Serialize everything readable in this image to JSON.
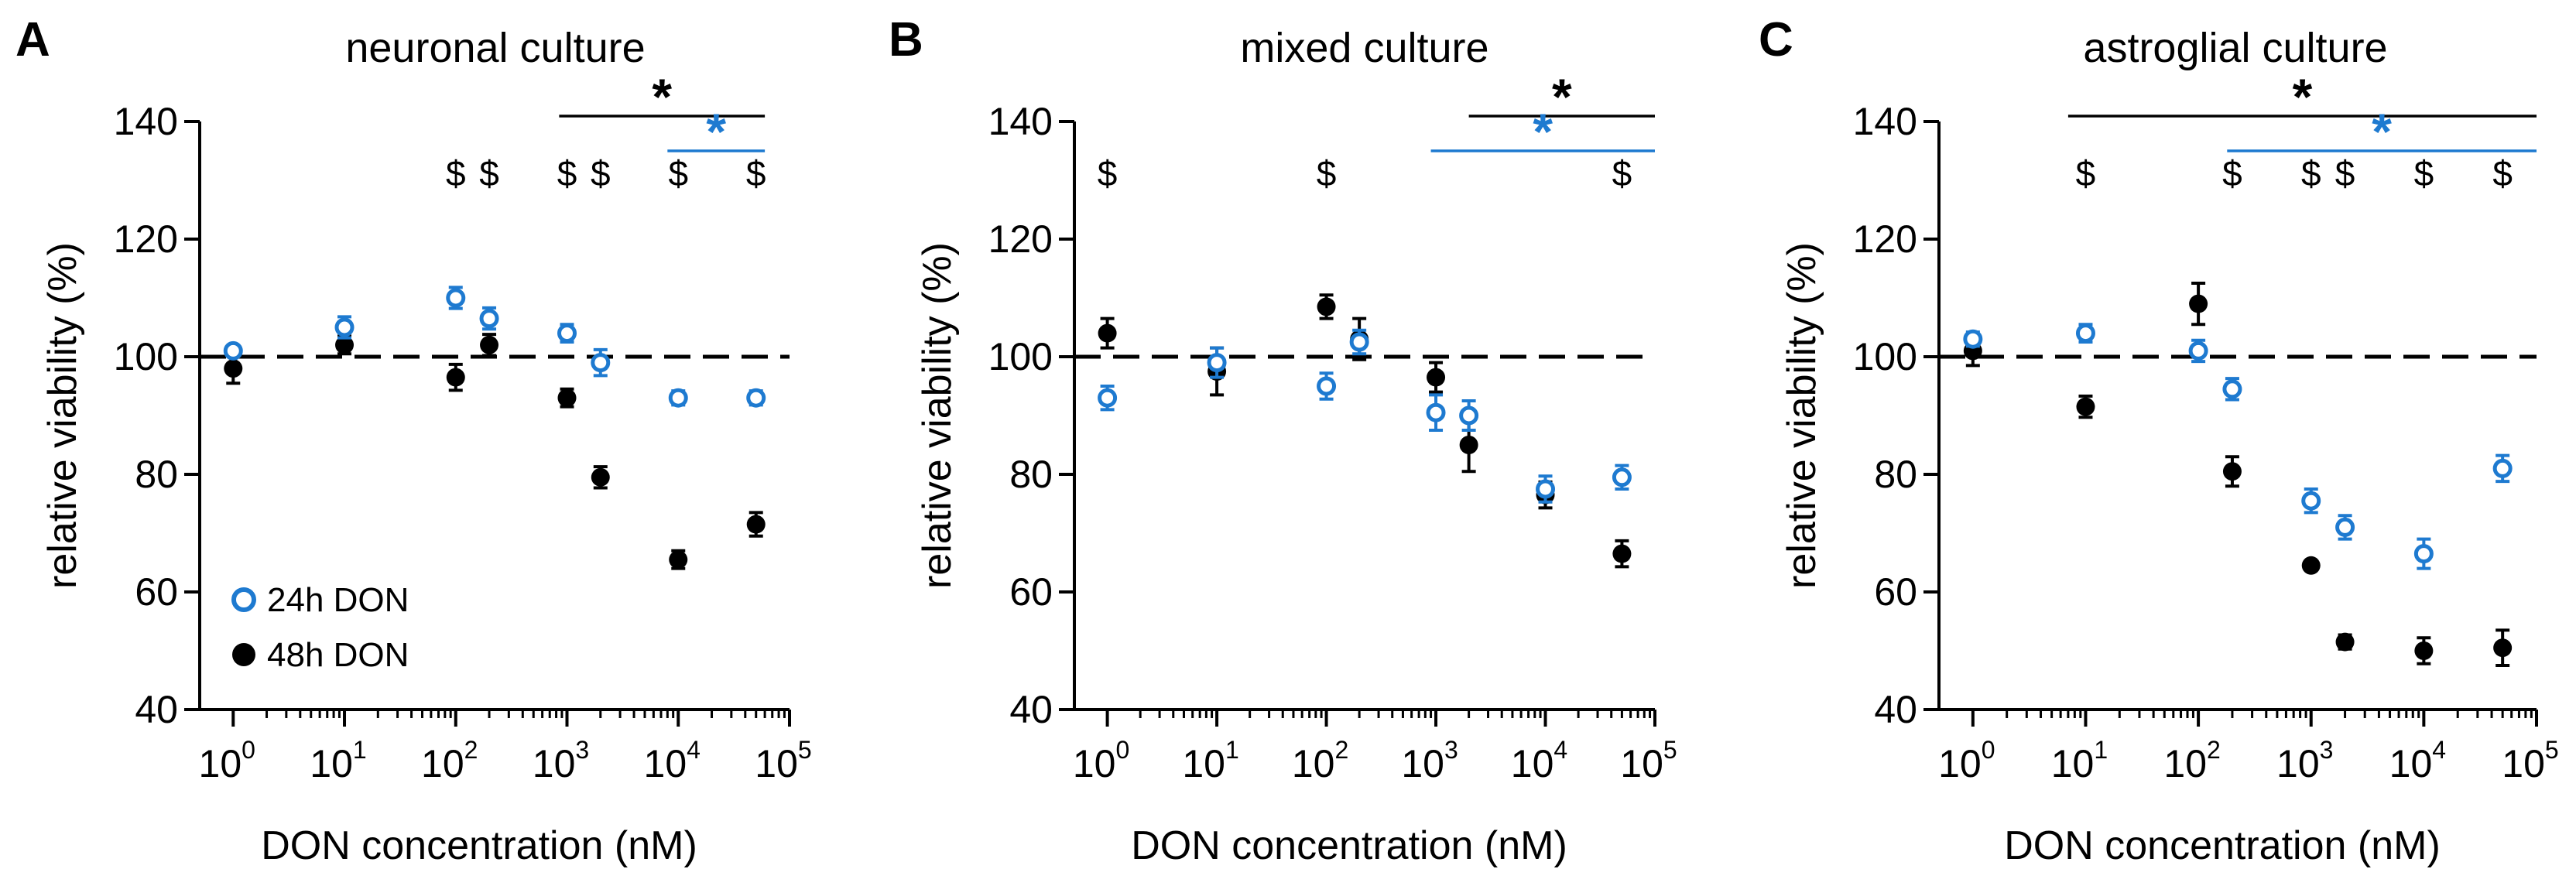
{
  "colors": {
    "series_24h": "#1e7ad0",
    "series_48h": "#000000",
    "reference_line": "#000000",
    "axis": "#000000"
  },
  "legend": {
    "items": [
      {
        "label": "24h DON",
        "marker": "open-circle",
        "color": "#1e7ad0"
      },
      {
        "label": "48h DON",
        "marker": "filled-circle",
        "color": "#000000"
      }
    ]
  },
  "chart_data": [
    {
      "type": "scatter",
      "panel_label": "A",
      "title": "neuronal culture",
      "xlabel": "DON concentration (nM)",
      "ylabel": "relative viability (%)",
      "xscale": "log",
      "xlim": [
        0.5,
        100000
      ],
      "ylim": [
        40,
        140
      ],
      "yticks": [
        40,
        60,
        80,
        100,
        120,
        140
      ],
      "xticks": [
        {
          "base": "10",
          "exp": "0",
          "value": 1
        },
        {
          "base": "10",
          "exp": "1",
          "value": 10
        },
        {
          "base": "10",
          "exp": "2",
          "value": 100
        },
        {
          "base": "10",
          "exp": "3",
          "value": 1000
        },
        {
          "base": "10",
          "exp": "4",
          "value": 10000
        },
        {
          "base": "10",
          "exp": "5",
          "value": 100000
        }
      ],
      "reference_line": {
        "y": 100,
        "style": "dashed"
      },
      "series": [
        {
          "name": "24h DON",
          "marker": "open-circle",
          "color": "#1e7ad0",
          "x": [
            1,
            10,
            100,
            200,
            1000,
            2000,
            10000,
            50000
          ],
          "y": [
            101,
            105,
            110,
            106.5,
            104,
            99,
            93,
            93
          ],
          "error": [
            0.8,
            1.8,
            1.8,
            1.8,
            1.5,
            2.2,
            1.2,
            1.2
          ]
        },
        {
          "name": "48h DON",
          "marker": "filled-circle",
          "color": "#000000",
          "x": [
            1,
            10,
            100,
            200,
            1000,
            2000,
            10000,
            50000
          ],
          "y": [
            98,
            102,
            96.5,
            102,
            93,
            79.5,
            65.5,
            71.5
          ],
          "error": [
            2.5,
            1.5,
            2.2,
            1.8,
            1.5,
            1.8,
            1.5,
            2
          ]
        }
      ],
      "dollar_marks": [
        {
          "x": 100,
          "text": "$"
        },
        {
          "x": 200,
          "text": "$"
        },
        {
          "x": 1000,
          "text": "$"
        },
        {
          "x": 2000,
          "text": "$"
        },
        {
          "x": 10000,
          "text": "$"
        },
        {
          "x": 50000,
          "text": "$"
        }
      ],
      "significance_bars": [
        {
          "color": "#000000",
          "x_from": 850,
          "x_to": 60000,
          "level": 1,
          "label": "*"
        },
        {
          "color": "#1e7ad0",
          "x_from": 8000,
          "x_to": 60000,
          "level": 2,
          "label": "*"
        }
      ]
    },
    {
      "type": "scatter",
      "panel_label": "B",
      "title": "mixed culture",
      "xlabel": "DON concentration (nM)",
      "ylabel": "relative viability (%)",
      "xscale": "log",
      "xlim": [
        0.5,
        100000
      ],
      "ylim": [
        40,
        140
      ],
      "yticks": [
        40,
        60,
        80,
        100,
        120,
        140
      ],
      "xticks": [
        {
          "base": "10",
          "exp": "0",
          "value": 1
        },
        {
          "base": "10",
          "exp": "1",
          "value": 10
        },
        {
          "base": "10",
          "exp": "2",
          "value": 100
        },
        {
          "base": "10",
          "exp": "3",
          "value": 1000
        },
        {
          "base": "10",
          "exp": "4",
          "value": 10000
        },
        {
          "base": "10",
          "exp": "5",
          "value": 100000
        }
      ],
      "reference_line": {
        "y": 100,
        "style": "dashed"
      },
      "series": [
        {
          "name": "24h DON",
          "marker": "open-circle",
          "color": "#1e7ad0",
          "x": [
            1,
            10,
            100,
            200,
            1000,
            2000,
            10000,
            50000
          ],
          "y": [
            93,
            99,
            95,
            102.5,
            90.5,
            90,
            77.5,
            79.5
          ],
          "error": [
            2,
            2.5,
            2.2,
            2,
            3,
            2.5,
            2.2,
            2
          ]
        },
        {
          "name": "48h DON",
          "marker": "filled-circle",
          "color": "#000000",
          "x": [
            1,
            10,
            100,
            200,
            1000,
            2000,
            10000,
            50000
          ],
          "y": [
            104,
            97.5,
            108.5,
            103,
            96.5,
            85,
            76.5,
            66.5
          ],
          "error": [
            2.5,
            4,
            2,
            3.5,
            2.5,
            4.5,
            2.2,
            2.2
          ]
        }
      ],
      "dollar_marks": [
        {
          "x": 1,
          "text": "$"
        },
        {
          "x": 100,
          "text": "$"
        },
        {
          "x": 50000,
          "text": "$"
        }
      ],
      "significance_bars": [
        {
          "color": "#000000",
          "x_from": 2000,
          "x_to": 100000,
          "level": 1,
          "label": "*"
        },
        {
          "color": "#1e7ad0",
          "x_from": 900,
          "x_to": 100000,
          "level": 2,
          "label": "*"
        }
      ]
    },
    {
      "type": "scatter",
      "panel_label": "C",
      "title": "astroglial culture",
      "xlabel": "DON concentration (nM)",
      "ylabel": "relative viability (%)",
      "xscale": "log",
      "xlim": [
        0.5,
        100000
      ],
      "ylim": [
        40,
        140
      ],
      "yticks": [
        40,
        60,
        80,
        100,
        120,
        140
      ],
      "xticks": [
        {
          "base": "10",
          "exp": "0",
          "value": 1
        },
        {
          "base": "10",
          "exp": "1",
          "value": 10
        },
        {
          "base": "10",
          "exp": "2",
          "value": 100
        },
        {
          "base": "10",
          "exp": "3",
          "value": 1000
        },
        {
          "base": "10",
          "exp": "4",
          "value": 10000
        },
        {
          "base": "10",
          "exp": "5",
          "value": 100000
        }
      ],
      "reference_line": {
        "y": 100,
        "style": "dashed"
      },
      "series": [
        {
          "name": "24h DON",
          "marker": "open-circle",
          "color": "#1e7ad0",
          "x": [
            1,
            10,
            100,
            200,
            1000,
            2000,
            10000,
            50000
          ],
          "y": [
            103,
            104,
            101,
            94.5,
            75.5,
            71,
            66.5,
            81
          ],
          "error": [
            1.2,
            1.5,
            1.8,
            1.8,
            2,
            2,
            2.5,
            2.2
          ]
        },
        {
          "name": "48h DON",
          "marker": "filled-circle",
          "color": "#000000",
          "x": [
            1,
            10,
            100,
            200,
            1000,
            2000,
            10000,
            50000
          ],
          "y": [
            101,
            91.5,
            109,
            80.5,
            64.5,
            51.5,
            50,
            50.5
          ],
          "error": [
            2.5,
            1.8,
            3.5,
            2.5,
            0.5,
            1.2,
            2.2,
            3
          ]
        }
      ],
      "dollar_marks": [
        {
          "x": 10,
          "text": "$"
        },
        {
          "x": 200,
          "text": "$"
        },
        {
          "x": 1000,
          "text": "$"
        },
        {
          "x": 2000,
          "text": "$"
        },
        {
          "x": 10000,
          "text": "$"
        },
        {
          "x": 50000,
          "text": "$"
        }
      ],
      "significance_bars": [
        {
          "color": "#000000",
          "x_from": 7,
          "x_to": 100000,
          "level": 1,
          "label": "*"
        },
        {
          "color": "#1e7ad0",
          "x_from": 180,
          "x_to": 100000,
          "level": 2,
          "label": "*"
        }
      ]
    }
  ]
}
